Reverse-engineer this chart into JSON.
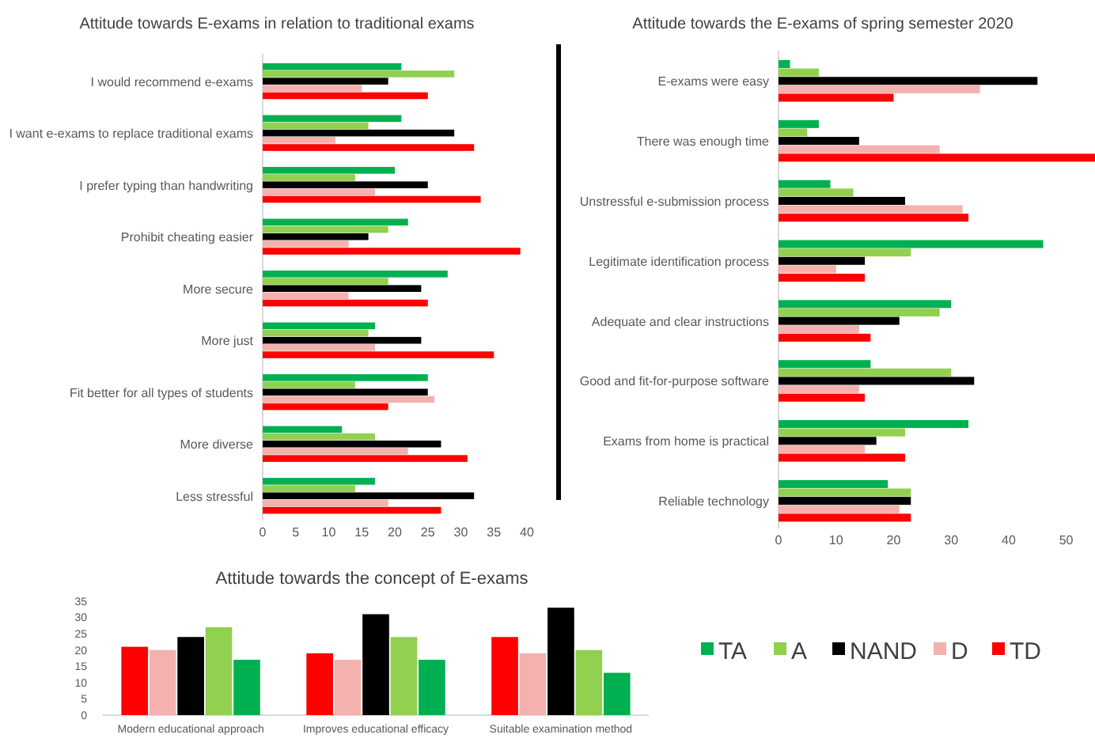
{
  "chart_data": [
    {
      "type": "bar",
      "orientation": "horizontal",
      "title": "Attitude towards E-exams in relation to traditional exams",
      "categories": [
        "I would recommend e-exams",
        "I want e-exams to replace traditional exams",
        "I prefer typing than handwriting",
        "Prohibit cheating easier",
        "More secure",
        "More just",
        "Fit better for all types of students",
        "More diverse",
        "Less stressful"
      ],
      "xlim": [
        0,
        40
      ],
      "xticks": [
        0,
        5,
        10,
        15,
        20,
        25,
        30,
        35,
        40
      ],
      "series": [
        {
          "color": "#00b050",
          "values": [
            21,
            21,
            20,
            22,
            28,
            17,
            25,
            12,
            17
          ]
        },
        {
          "color": "#92d050",
          "values": [
            29,
            16,
            14,
            19,
            19,
            16,
            14,
            17,
            14
          ]
        },
        {
          "color": "#000000",
          "values": [
            19,
            29,
            25,
            16,
            24,
            24,
            25,
            27,
            32
          ]
        },
        {
          "color": "#f4b1ae",
          "values": [
            15,
            11,
            17,
            13,
            13,
            17,
            26,
            22,
            19
          ]
        },
        {
          "color": "#ff0000",
          "values": [
            25,
            32,
            33,
            39,
            25,
            35,
            19,
            31,
            27
          ]
        }
      ]
    },
    {
      "type": "bar",
      "orientation": "horizontal",
      "title": "Attitude towards the E-exams of spring semester 2020",
      "categories": [
        "E-exams were easy",
        "There was enough time",
        "Unstressful e-submission process",
        "Legitimate identification process",
        "Adequate and clear instructions",
        "Good and fit-for-purpose software",
        "Exams from home is practical",
        "Reliable technology"
      ],
      "xlim": [
        0,
        55
      ],
      "xticks": [
        0,
        10,
        20,
        30,
        40,
        50
      ],
      "series": [
        {
          "color": "#00b050",
          "values": [
            2,
            7,
            9,
            46,
            30,
            16,
            33,
            19
          ]
        },
        {
          "color": "#92d050",
          "values": [
            7,
            5,
            13,
            23,
            28,
            30,
            22,
            23
          ]
        },
        {
          "color": "#000000",
          "values": [
            45,
            14,
            22,
            15,
            21,
            34,
            17,
            23
          ]
        },
        {
          "color": "#f4b1ae",
          "values": [
            35,
            28,
            32,
            10,
            14,
            14,
            15,
            21
          ]
        },
        {
          "color": "#ff0000",
          "values": [
            20,
            55,
            33,
            15,
            16,
            15,
            22,
            23
          ]
        }
      ]
    },
    {
      "type": "bar",
      "title": "Attitude towards the concept of E-exams",
      "categories": [
        "Modern educational approach",
        "Improves educational efficacy",
        "Suitable examination method"
      ],
      "ylim": [
        0,
        35
      ],
      "yticks": [
        0,
        5,
        10,
        15,
        20,
        25,
        30,
        35
      ],
      "legend": "right",
      "series": [
        {
          "name": "TD",
          "color": "#ff0000",
          "values": [
            21,
            19,
            24
          ]
        },
        {
          "name": "D",
          "color": "#f4b1ae",
          "values": [
            20,
            17,
            19
          ]
        },
        {
          "name": "NAND",
          "color": "#000000",
          "values": [
            24,
            31,
            33
          ]
        },
        {
          "name": "A",
          "color": "#92d050",
          "values": [
            27,
            24,
            20
          ]
        },
        {
          "name": "TA",
          "color": "#00b050",
          "values": [
            17,
            17,
            13
          ]
        }
      ]
    }
  ]
}
